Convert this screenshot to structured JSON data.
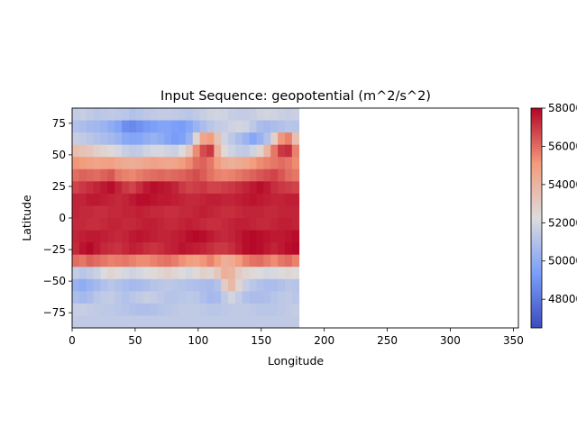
{
  "chart_data": {
    "type": "heatmap",
    "title": "Input Sequence: geopotential (m^2/s^2)",
    "xlabel": "Longitude",
    "ylabel": "Latitude",
    "xlim": [
      0,
      354
    ],
    "ylim": [
      -87,
      87
    ],
    "xticks": [
      0,
      50,
      100,
      150,
      200,
      250,
      300,
      350
    ],
    "yticks": [
      -75,
      -50,
      -25,
      0,
      25,
      50,
      75
    ],
    "colormap": "coolwarm",
    "colorbar": {
      "min": 46500,
      "max": 58000,
      "ticks": [
        48000,
        50000,
        52000,
        54000,
        56000,
        58000
      ]
    },
    "grid": false,
    "lon_step": 5.625,
    "lat_rows": [
      85,
      75,
      65,
      55,
      45,
      35,
      25,
      15,
      5,
      -5,
      -15,
      -25,
      -35,
      -45,
      -55,
      -65,
      -75,
      -85
    ],
    "values": [
      [
        51500,
        51600,
        51400,
        51200,
        51300,
        51400,
        51300,
        51200,
        51000,
        51100,
        51300,
        51400,
        51500,
        51500,
        51400,
        51300,
        51200,
        51400,
        51600,
        51800,
        51900,
        51800,
        51600,
        51500,
        51500,
        51600,
        51800,
        51900,
        51800,
        51700,
        51600,
        51700
      ],
      [
        51000,
        50800,
        50600,
        50500,
        50300,
        50000,
        49600,
        48800,
        48600,
        48900,
        49200,
        49400,
        49600,
        49600,
        49400,
        49300,
        49700,
        50300,
        50800,
        51200,
        51500,
        51600,
        51800,
        51900,
        51800,
        51300,
        50800,
        50600,
        50800,
        51000,
        51200,
        51100
      ],
      [
        51600,
        51400,
        51200,
        51000,
        50800,
        50600,
        50300,
        49800,
        49600,
        49700,
        50000,
        50200,
        50000,
        49600,
        49300,
        49500,
        50200,
        52600,
        54600,
        55000,
        53400,
        51800,
        51300,
        50800,
        50300,
        49700,
        50200,
        51000,
        52800,
        55200,
        55600,
        53500
      ],
      [
        53600,
        53400,
        53200,
        52800,
        52600,
        52400,
        52000,
        51600,
        51400,
        51500,
        51800,
        52000,
        52000,
        51800,
        51700,
        52200,
        53200,
        55400,
        56600,
        57000,
        54200,
        52400,
        51800,
        51500,
        51400,
        51800,
        52600,
        54000,
        55800,
        57000,
        57200,
        55600
      ],
      [
        55200,
        55000,
        54800,
        54700,
        54800,
        54900,
        54600,
        54400,
        54300,
        54400,
        54600,
        54800,
        54700,
        54600,
        54700,
        55000,
        55400,
        56000,
        56200,
        55800,
        55000,
        54400,
        54200,
        54400,
        54600,
        55000,
        55400,
        55600,
        55800,
        56000,
        55800,
        55400
      ],
      [
        56000,
        56200,
        56100,
        56000,
        56200,
        56400,
        55800,
        55600,
        55500,
        55700,
        55900,
        56000,
        56100,
        56000,
        56100,
        56200,
        56400,
        56600,
        56300,
        55900,
        55600,
        55500,
        55600,
        55800,
        56000,
        56200,
        56400,
        56600,
        56800,
        56400,
        56000,
        55800
      ],
      [
        56800,
        57000,
        57200,
        57400,
        57600,
        57800,
        57400,
        57000,
        56800,
        57200,
        57600,
        57800,
        57700,
        57600,
        57400,
        57000,
        56800,
        56900,
        57000,
        56800,
        56800,
        56900,
        57000,
        57200,
        57400,
        57600,
        57800,
        57600,
        57200,
        57000,
        56900,
        56800
      ],
      [
        57400,
        57400,
        57600,
        57600,
        57500,
        57400,
        57300,
        57400,
        57600,
        57800,
        57800,
        57700,
        57600,
        57600,
        57500,
        57400,
        57300,
        57300,
        57400,
        57500,
        57500,
        57400,
        57400,
        57500,
        57600,
        57700,
        57600,
        57500,
        57400,
        57400,
        57500,
        57500
      ],
      [
        57400,
        57300,
        57300,
        57200,
        57200,
        57300,
        57300,
        57400,
        57400,
        57500,
        57400,
        57300,
        57300,
        57200,
        57200,
        57300,
        57300,
        57400,
        57500,
        57400,
        57300,
        57200,
        57200,
        57300,
        57400,
        57400,
        57400,
        57300,
        57300,
        57400,
        57400,
        57400
      ],
      [
        57300,
        57300,
        57200,
        57200,
        57300,
        57400,
        57400,
        57300,
        57300,
        57400,
        57500,
        57500,
        57400,
        57300,
        57300,
        57400,
        57500,
        57400,
        57300,
        57200,
        57200,
        57300,
        57400,
        57500,
        57500,
        57400,
        57300,
        57300,
        57400,
        57500,
        57500,
        57400
      ],
      [
        57400,
        57500,
        57600,
        57600,
        57500,
        57400,
        57300,
        57400,
        57600,
        57700,
        57600,
        57500,
        57400,
        57400,
        57500,
        57600,
        57800,
        57900,
        57800,
        57600,
        57400,
        57300,
        57400,
        57600,
        57800,
        57900,
        57800,
        57700,
        57600,
        57600,
        57700,
        57800
      ],
      [
        57300,
        57700,
        57900,
        57600,
        57300,
        57200,
        57100,
        57300,
        57500,
        57400,
        57200,
        57100,
        57200,
        57400,
        57500,
        57700,
        57600,
        57500,
        57400,
        57200,
        57000,
        57000,
        57200,
        57500,
        57800,
        57900,
        57800,
        57600,
        57400,
        57600,
        57800,
        57900
      ],
      [
        56000,
        55800,
        56200,
        56000,
        55800,
        55600,
        55700,
        55800,
        55600,
        55400,
        55400,
        55600,
        55800,
        55900,
        55700,
        55300,
        55000,
        54800,
        55200,
        55600,
        55000,
        54200,
        54400,
        55000,
        55600,
        55900,
        56000,
        55700,
        55400,
        55800,
        56000,
        55600
      ],
      [
        51500,
        51200,
        51400,
        51700,
        52200,
        52600,
        52400,
        52000,
        51800,
        52000,
        52200,
        52400,
        52600,
        52800,
        52500,
        52200,
        52000,
        52400,
        52800,
        52600,
        53200,
        54200,
        54000,
        53000,
        52600,
        52400,
        52200,
        52000,
        52100,
        52300,
        52500,
        52300
      ],
      [
        50200,
        50000,
        50300,
        50600,
        51000,
        51200,
        51000,
        50800,
        50600,
        50700,
        50900,
        51100,
        51200,
        51300,
        51200,
        51100,
        51000,
        50900,
        50800,
        50700,
        51000,
        53000,
        53800,
        52600,
        51600,
        51200,
        51000,
        50800,
        50800,
        51000,
        51200,
        51100
      ],
      [
        50800,
        50600,
        50800,
        51200,
        51400,
        51500,
        51200,
        51000,
        51200,
        51400,
        51600,
        51500,
        51300,
        51100,
        51100,
        51200,
        51300,
        51200,
        50900,
        50600,
        50700,
        51400,
        51900,
        51500,
        51000,
        50800,
        50800,
        50900,
        51100,
        51300,
        51400,
        51200
      ],
      [
        51600,
        51600,
        51500,
        51400,
        51300,
        51300,
        51200,
        51100,
        51000,
        50900,
        50900,
        51000,
        51100,
        51200,
        51300,
        51400,
        51400,
        51400,
        51300,
        51200,
        51200,
        51300,
        51400,
        51400,
        51400,
        51300,
        51200,
        51200,
        51200,
        51300,
        51400,
        51500
      ],
      [
        51400,
        51400,
        51400,
        51400,
        51400,
        51400,
        51400,
        51400,
        51400,
        51400,
        51400,
        51400,
        51400,
        51400,
        51400,
        51400,
        51400,
        51400,
        51400,
        51400,
        51400,
        51400,
        51400,
        51400,
        51400,
        51400,
        51400,
        51400,
        51400,
        51400,
        51400,
        51400
      ]
    ]
  }
}
